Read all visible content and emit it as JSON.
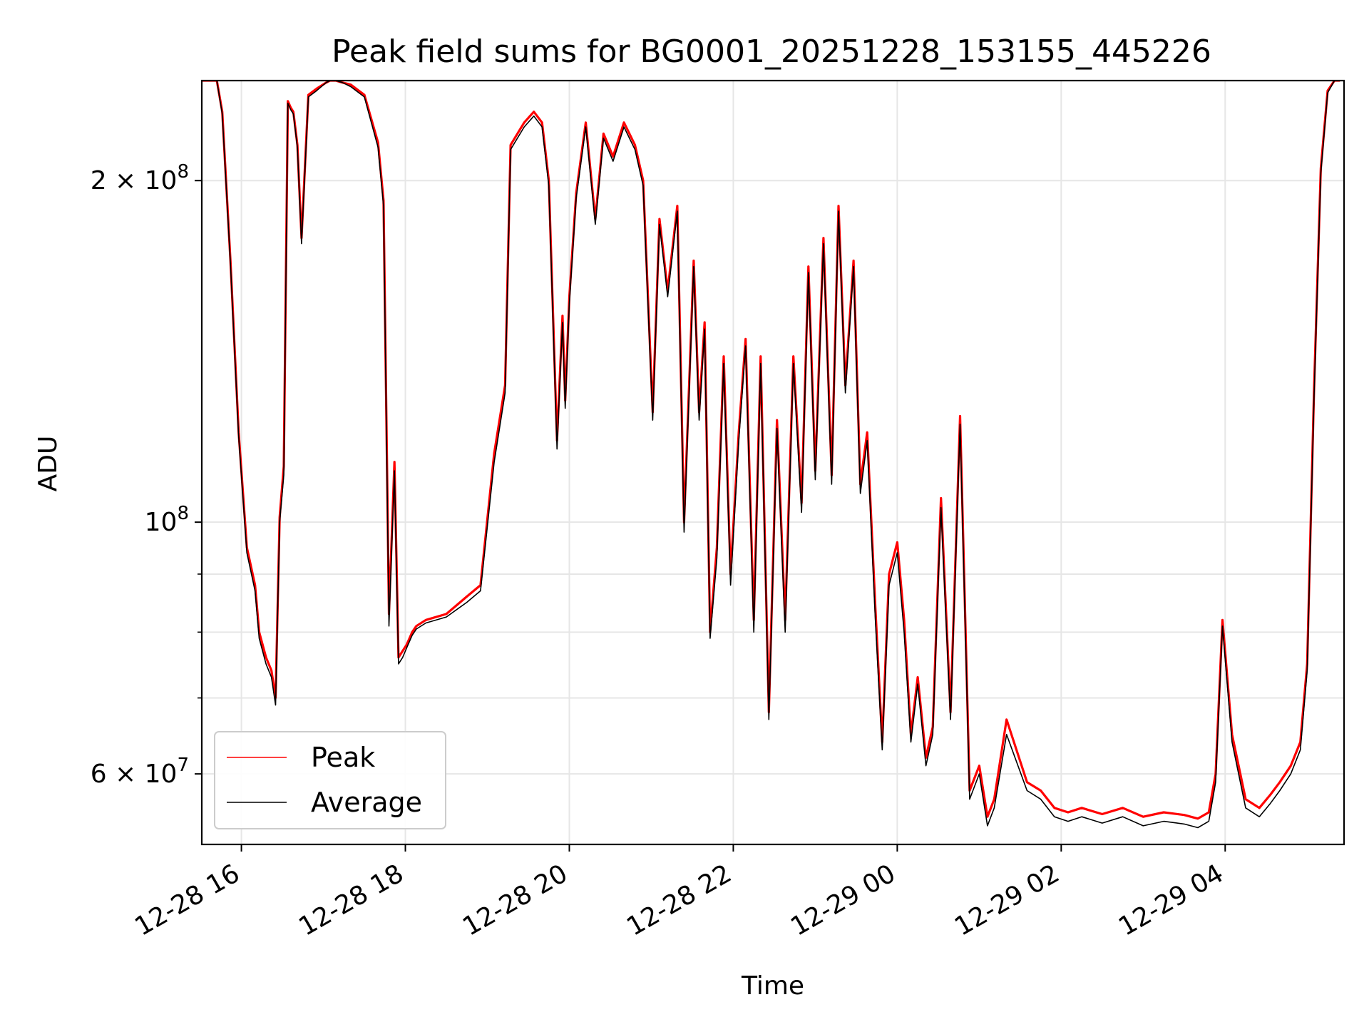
{
  "chart_data": {
    "type": "line",
    "title": "Peak field sums for BG0001_20251228_153155_445226",
    "xlabel": "Time",
    "ylabel": "ADU",
    "y_scale": "log",
    "xlim": [
      "2025-12-28 15:31",
      "2025-12-29 05:27"
    ],
    "ylim": [
      52000000,
      245000000
    ],
    "x_ticks": [
      "12-28 16",
      "12-28 18",
      "12-28 20",
      "12-28 22",
      "12-29 00",
      "12-29 02",
      "12-29 04"
    ],
    "y_ticks": [
      {
        "value": 200000000,
        "label": "2 × 10^8"
      },
      {
        "value": 100000000,
        "label": "10^8"
      },
      {
        "value": 60000000,
        "label": "6 × 10^7"
      }
    ],
    "y_minor_ticks": [
      90000000,
      80000000,
      70000000
    ],
    "grid": true,
    "legend_position": "lower-left",
    "series": [
      {
        "name": "Peak",
        "color": "#ff0000",
        "x": [
          "2025-12-28 15:31",
          "2025-12-28 15:42",
          "2025-12-28 15:46",
          "2025-12-28 15:52",
          "2025-12-28 15:58",
          "2025-12-28 16:04",
          "2025-12-28 16:10",
          "2025-12-28 16:13",
          "2025-12-28 16:18",
          "2025-12-28 16:22",
          "2025-12-28 16:25",
          "2025-12-28 16:28",
          "2025-12-28 16:31",
          "2025-12-28 16:34",
          "2025-12-28 16:36",
          "2025-12-28 16:38",
          "2025-12-28 16:41",
          "2025-12-28 16:44",
          "2025-12-28 16:49",
          "2025-12-28 16:55",
          "2025-12-28 17:02",
          "2025-12-28 17:05",
          "2025-12-28 17:09",
          "2025-12-28 17:14",
          "2025-12-28 17:20",
          "2025-12-28 17:30",
          "2025-12-28 17:40",
          "2025-12-28 17:44",
          "2025-12-28 17:48",
          "2025-12-28 17:52",
          "2025-12-28 17:55",
          "2025-12-28 17:58",
          "2025-12-28 18:01",
          "2025-12-28 18:03",
          "2025-12-28 18:05",
          "2025-12-28 18:08",
          "2025-12-28 18:15",
          "2025-12-28 18:30",
          "2025-12-28 18:45",
          "2025-12-28 18:55",
          "2025-12-28 19:05",
          "2025-12-28 19:13",
          "2025-12-28 19:17",
          "2025-12-28 19:22",
          "2025-12-28 19:27",
          "2025-12-28 19:34",
          "2025-12-28 19:40",
          "2025-12-28 19:45",
          "2025-12-28 19:51",
          "2025-12-28 19:55",
          "2025-12-28 19:57",
          "2025-12-28 20:00",
          "2025-12-28 20:05",
          "2025-12-28 20:12",
          "2025-12-28 20:19",
          "2025-12-28 20:25",
          "2025-12-28 20:32",
          "2025-12-28 20:40",
          "2025-12-28 20:48",
          "2025-12-28 20:54",
          "2025-12-28 21:01",
          "2025-12-28 21:06",
          "2025-12-28 21:12",
          "2025-12-28 21:19",
          "2025-12-28 21:24",
          "2025-12-28 21:31",
          "2025-12-28 21:35",
          "2025-12-28 21:39",
          "2025-12-28 21:43",
          "2025-12-28 21:48",
          "2025-12-28 21:53",
          "2025-12-28 21:58",
          "2025-12-28 22:04",
          "2025-12-28 22:09",
          "2025-12-28 22:15",
          "2025-12-28 22:20",
          "2025-12-28 22:26",
          "2025-12-28 22:32",
          "2025-12-28 22:38",
          "2025-12-28 22:44",
          "2025-12-28 22:50",
          "2025-12-28 22:55",
          "2025-12-28 23:00",
          "2025-12-28 23:06",
          "2025-12-28 23:12",
          "2025-12-28 23:17",
          "2025-12-28 23:22",
          "2025-12-28 23:28",
          "2025-12-28 23:33",
          "2025-12-28 23:38",
          "2025-12-28 23:44",
          "2025-12-28 23:49",
          "2025-12-28 23:54",
          "2025-12-29 00:00",
          "2025-12-29 00:05",
          "2025-12-29 00:10",
          "2025-12-29 00:15",
          "2025-12-29 00:21",
          "2025-12-29 00:26",
          "2025-12-29 00:32",
          "2025-12-29 00:39",
          "2025-12-29 00:46",
          "2025-12-29 00:53",
          "2025-12-29 01:00",
          "2025-12-29 01:06",
          "2025-12-29 01:11",
          "2025-12-29 01:20",
          "2025-12-29 01:35",
          "2025-12-29 01:45",
          "2025-12-29 01:55",
          "2025-12-29 02:05",
          "2025-12-29 02:15",
          "2025-12-29 02:30",
          "2025-12-29 02:45",
          "2025-12-29 03:00",
          "2025-12-29 03:15",
          "2025-12-29 03:30",
          "2025-12-29 03:40",
          "2025-12-29 03:48",
          "2025-12-29 03:53",
          "2025-12-29 03:58",
          "2025-12-29 04:05",
          "2025-12-29 04:15",
          "2025-12-29 04:25",
          "2025-12-29 04:33",
          "2025-12-29 04:40",
          "2025-12-29 04:48",
          "2025-12-29 04:55",
          "2025-12-29 05:00",
          "2025-12-29 05:05",
          "2025-12-29 05:10",
          "2025-12-29 05:15",
          "2025-12-29 05:20",
          "2025-12-29 05:24"
        ],
        "values": [
          245000000,
          245000000,
          230000000,
          170000000,
          120000000,
          95000000,
          88000000,
          80000000,
          76000000,
          74000000,
          70000000,
          101000000,
          112000000,
          235000000,
          232000000,
          230000000,
          215000000,
          178000000,
          238000000,
          241000000,
          244000000,
          245000000,
          245000000,
          244000000,
          243000000,
          238000000,
          216000000,
          192000000,
          83000000,
          113000000,
          76000000,
          77000000,
          78000000,
          79000000,
          80000000,
          81000000,
          82000000,
          83000000,
          86000000,
          88000000,
          115000000,
          132000000,
          215000000,
          220000000,
          225000000,
          230000000,
          225000000,
          200000000,
          118000000,
          152000000,
          128000000,
          158000000,
          195000000,
          225000000,
          185000000,
          220000000,
          210000000,
          225000000,
          215000000,
          200000000,
          125000000,
          185000000,
          160000000,
          190000000,
          100000000,
          170000000,
          125000000,
          150000000,
          80000000,
          95000000,
          140000000,
          90000000,
          120000000,
          145000000,
          82000000,
          140000000,
          68000000,
          123000000,
          82000000,
          140000000,
          104000000,
          168000000,
          111000000,
          178000000,
          110000000,
          190000000,
          132000000,
          170000000,
          108000000,
          120000000,
          84000000,
          64000000,
          90000000,
          96000000,
          82000000,
          65000000,
          73000000,
          62000000,
          66000000,
          105000000,
          68000000,
          124000000,
          58000000,
          61000000,
          55000000,
          57000000,
          67000000,
          59000000,
          58000000,
          56000000,
          55500000,
          56000000,
          55300000,
          56000000,
          55000000,
          55500000,
          55200000,
          54800000,
          55500000,
          60000000,
          82000000,
          65000000,
          57000000,
          56000000,
          57500000,
          59000000,
          61000000,
          64000000,
          75000000,
          130000000,
          205000000,
          240000000,
          245000000,
          245000000
        ]
      },
      {
        "name": "Average",
        "color": "#000000",
        "x": [
          "2025-12-28 15:31",
          "2025-12-28 15:42",
          "2025-12-28 15:46",
          "2025-12-28 15:52",
          "2025-12-28 15:58",
          "2025-12-28 16:04",
          "2025-12-28 16:10",
          "2025-12-28 16:13",
          "2025-12-28 16:18",
          "2025-12-28 16:22",
          "2025-12-28 16:25",
          "2025-12-28 16:28",
          "2025-12-28 16:31",
          "2025-12-28 16:34",
          "2025-12-28 16:36",
          "2025-12-28 16:38",
          "2025-12-28 16:41",
          "2025-12-28 16:44",
          "2025-12-28 16:49",
          "2025-12-28 16:55",
          "2025-12-28 17:02",
          "2025-12-28 17:05",
          "2025-12-28 17:09",
          "2025-12-28 17:14",
          "2025-12-28 17:20",
          "2025-12-28 17:30",
          "2025-12-28 17:40",
          "2025-12-28 17:44",
          "2025-12-28 17:48",
          "2025-12-28 17:52",
          "2025-12-28 17:55",
          "2025-12-28 17:58",
          "2025-12-28 18:01",
          "2025-12-28 18:03",
          "2025-12-28 18:05",
          "2025-12-28 18:08",
          "2025-12-28 18:15",
          "2025-12-28 18:30",
          "2025-12-28 18:45",
          "2025-12-28 18:55",
          "2025-12-28 19:05",
          "2025-12-28 19:13",
          "2025-12-28 19:17",
          "2025-12-28 19:22",
          "2025-12-28 19:27",
          "2025-12-28 19:34",
          "2025-12-28 19:40",
          "2025-12-28 19:45",
          "2025-12-28 19:51",
          "2025-12-28 19:55",
          "2025-12-28 19:57",
          "2025-12-28 20:00",
          "2025-12-28 20:05",
          "2025-12-28 20:12",
          "2025-12-28 20:19",
          "2025-12-28 20:25",
          "2025-12-28 20:32",
          "2025-12-28 20:40",
          "2025-12-28 20:48",
          "2025-12-28 20:54",
          "2025-12-28 21:01",
          "2025-12-28 21:06",
          "2025-12-28 21:12",
          "2025-12-28 21:19",
          "2025-12-28 21:24",
          "2025-12-28 21:31",
          "2025-12-28 21:35",
          "2025-12-28 21:39",
          "2025-12-28 21:43",
          "2025-12-28 21:48",
          "2025-12-28 21:53",
          "2025-12-28 21:58",
          "2025-12-28 22:04",
          "2025-12-28 22:09",
          "2025-12-28 22:15",
          "2025-12-28 22:20",
          "2025-12-28 22:26",
          "2025-12-28 22:32",
          "2025-12-28 22:38",
          "2025-12-28 22:44",
          "2025-12-28 22:50",
          "2025-12-28 22:55",
          "2025-12-28 23:00",
          "2025-12-28 23:06",
          "2025-12-28 23:12",
          "2025-12-28 23:17",
          "2025-12-28 23:22",
          "2025-12-28 23:28",
          "2025-12-28 23:33",
          "2025-12-28 23:38",
          "2025-12-28 23:44",
          "2025-12-28 23:49",
          "2025-12-28 23:54",
          "2025-12-29 00:00",
          "2025-12-29 00:05",
          "2025-12-29 00:10",
          "2025-12-29 00:15",
          "2025-12-29 00:21",
          "2025-12-29 00:26",
          "2025-12-29 00:32",
          "2025-12-29 00:39",
          "2025-12-29 00:46",
          "2025-12-29 00:53",
          "2025-12-29 01:00",
          "2025-12-29 01:06",
          "2025-12-29 01:11",
          "2025-12-29 01:20",
          "2025-12-29 01:35",
          "2025-12-29 01:45",
          "2025-12-29 01:55",
          "2025-12-29 02:05",
          "2025-12-29 02:15",
          "2025-12-29 02:30",
          "2025-12-29 02:45",
          "2025-12-29 03:00",
          "2025-12-29 03:15",
          "2025-12-29 03:30",
          "2025-12-29 03:40",
          "2025-12-29 03:48",
          "2025-12-29 03:53",
          "2025-12-29 03:58",
          "2025-12-29 04:05",
          "2025-12-29 04:15",
          "2025-12-29 04:25",
          "2025-12-29 04:33",
          "2025-12-29 04:40",
          "2025-12-29 04:48",
          "2025-12-29 04:55",
          "2025-12-29 05:00",
          "2025-12-29 05:05",
          "2025-12-29 05:10",
          "2025-12-29 05:15",
          "2025-12-29 05:20",
          "2025-12-29 05:24"
        ],
        "values": [
          245000000,
          245000000,
          229000000,
          169000000,
          119000000,
          94000000,
          87000000,
          79000000,
          75000000,
          73000000,
          69000000,
          100000000,
          110000000,
          234000000,
          231000000,
          229000000,
          214000000,
          176000000,
          237000000,
          240000000,
          244000000,
          245000000,
          245000000,
          244000000,
          242000000,
          237000000,
          214000000,
          190000000,
          81000000,
          111000000,
          75000000,
          76000000,
          77500000,
          78500000,
          79500000,
          80500000,
          81500000,
          82500000,
          85000000,
          87000000,
          113000000,
          130000000,
          213000000,
          218000000,
          223000000,
          228000000,
          223000000,
          198000000,
          116000000,
          150000000,
          126000000,
          156000000,
          193000000,
          223000000,
          183000000,
          218000000,
          208000000,
          223000000,
          213000000,
          198000000,
          123000000,
          183000000,
          158000000,
          188000000,
          98000000,
          168000000,
          123000000,
          148000000,
          79000000,
          93000000,
          138000000,
          88000000,
          118000000,
          143000000,
          80000000,
          138000000,
          67000000,
          121000000,
          80000000,
          138000000,
          102000000,
          166000000,
          109000000,
          176000000,
          108000000,
          188000000,
          130000000,
          168000000,
          106000000,
          118000000,
          82000000,
          63000000,
          88000000,
          94000000,
          80000000,
          64000000,
          72000000,
          61000000,
          65000000,
          103000000,
          67000000,
          122000000,
          57000000,
          60000000,
          54000000,
          56000000,
          65000000,
          58000000,
          57000000,
          55000000,
          54500000,
          55000000,
          54300000,
          55000000,
          54000000,
          54500000,
          54200000,
          53800000,
          54500000,
          59000000,
          81000000,
          64000000,
          56000000,
          55000000,
          56500000,
          58000000,
          60000000,
          63000000,
          74000000,
          128000000,
          203000000,
          239000000,
          245000000,
          245000000
        ]
      }
    ]
  }
}
